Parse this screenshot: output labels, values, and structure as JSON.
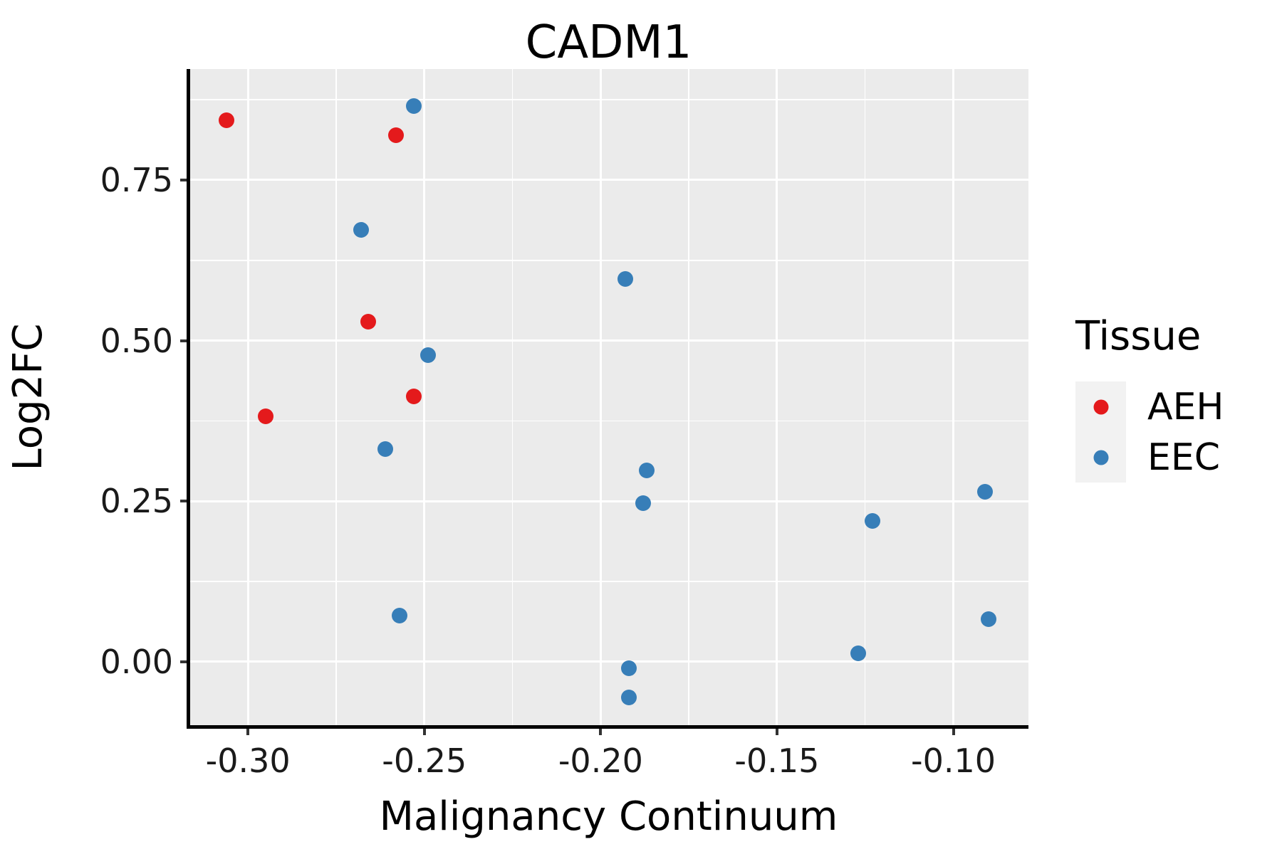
{
  "title": "CADM1",
  "axes": {
    "x": {
      "label": "Malignancy Continuum",
      "ticks": [
        -0.3,
        -0.25,
        -0.2,
        -0.15,
        -0.1
      ],
      "tick_labels": [
        "-0.30",
        "-0.25",
        "-0.20",
        "-0.15",
        "-0.10"
      ],
      "lim": [
        -0.3168,
        -0.0787
      ],
      "minor_step": 0.025
    },
    "y": {
      "label": "Log2FC",
      "ticks": [
        0.0,
        0.25,
        0.5,
        0.75
      ],
      "tick_labels": [
        "0.00",
        "0.25",
        "0.50",
        "0.75"
      ],
      "lim": [
        -0.0986,
        0.9227
      ],
      "minor_step": 0.125
    }
  },
  "legend": {
    "title": "Tissue",
    "entries": [
      {
        "label": "AEH",
        "color": "#E41A1C"
      },
      {
        "label": "EEC",
        "color": "#377EB8"
      }
    ]
  },
  "colors": {
    "panel_bg": "#EBEBEB",
    "grid": "#FFFFFF",
    "legend_key_bg": "#F2F2F2",
    "axis_line": "#000000",
    "tick_mark": "#333333",
    "aeh_red": "#E41A1C",
    "eec_blue": "#377EB8"
  },
  "chart_data": {
    "type": "scatter",
    "title": "CADM1",
    "xlabel": "Malignancy Continuum",
    "ylabel": "Log2FC",
    "xlim": [
      -0.3168,
      -0.0787
    ],
    "ylim": [
      -0.0986,
      0.9227
    ],
    "grid": "on",
    "legend_position": "right",
    "series": [
      {
        "name": "AEH",
        "color": "#E41A1C",
        "points": [
          [
            -0.306,
            0.843
          ],
          [
            -0.258,
            0.82
          ],
          [
            -0.266,
            0.529
          ],
          [
            -0.295,
            0.382
          ],
          [
            -0.253,
            0.413
          ]
        ]
      },
      {
        "name": "EEC",
        "color": "#377EB8",
        "points": [
          [
            -0.253,
            0.865
          ],
          [
            -0.268,
            0.672
          ],
          [
            -0.193,
            0.596
          ],
          [
            -0.249,
            0.477
          ],
          [
            -0.261,
            0.331
          ],
          [
            -0.187,
            0.298
          ],
          [
            -0.188,
            0.247
          ],
          [
            -0.123,
            0.219
          ],
          [
            -0.091,
            0.265
          ],
          [
            -0.257,
            0.072
          ],
          [
            -0.09,
            0.066
          ],
          [
            -0.127,
            0.013
          ],
          [
            -0.192,
            -0.01
          ],
          [
            -0.192,
            -0.055
          ]
        ]
      }
    ]
  }
}
